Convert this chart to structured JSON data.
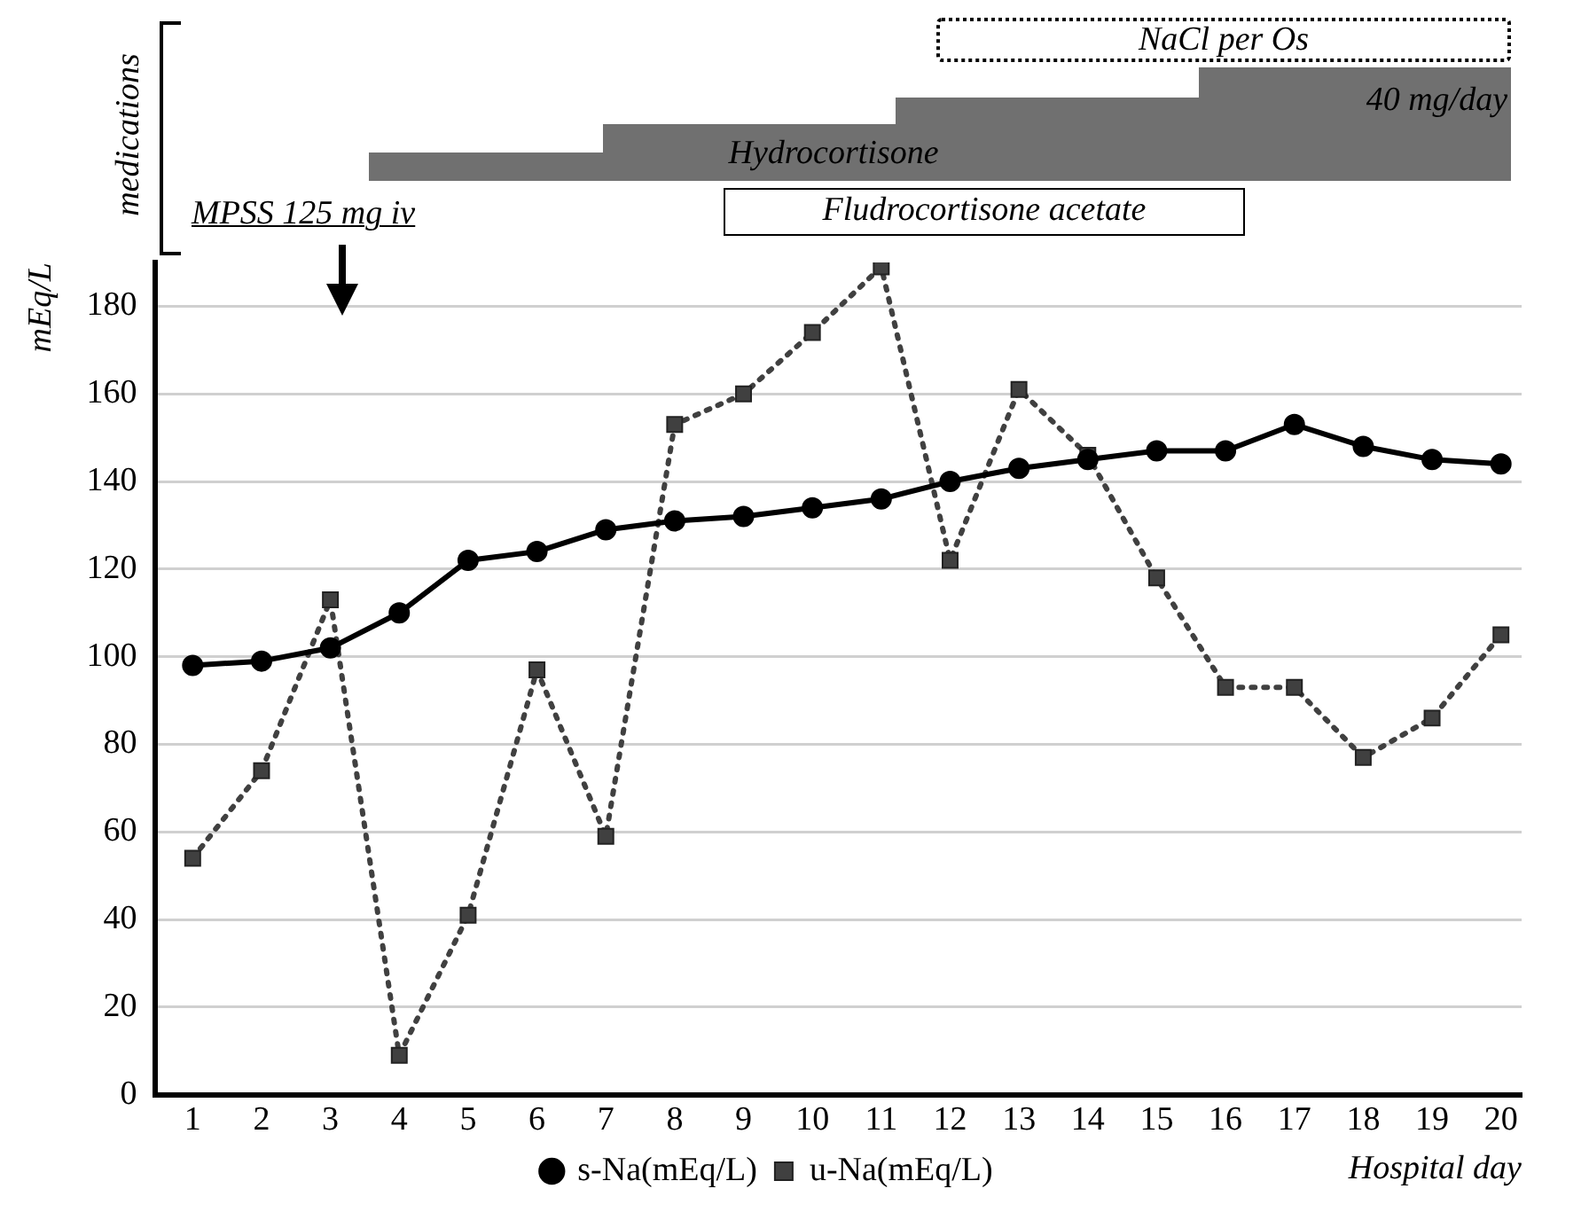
{
  "chart_data": {
    "type": "line",
    "x": [
      1,
      2,
      3,
      4,
      5,
      6,
      7,
      8,
      9,
      10,
      11,
      12,
      13,
      14,
      15,
      16,
      17,
      18,
      19,
      20
    ],
    "xlim": [
      0.45,
      20.3
    ],
    "xticks": [
      1,
      2,
      3,
      4,
      5,
      6,
      7,
      8,
      9,
      10,
      11,
      12,
      13,
      14,
      15,
      16,
      17,
      18,
      19,
      20
    ],
    "ylim": [
      0,
      190
    ],
    "yticks": [
      0,
      20,
      40,
      60,
      80,
      100,
      120,
      140,
      160,
      180
    ],
    "xlabel": "Hospital day",
    "ylabel": "mEq/L",
    "series": [
      {
        "name": "u-Na(mEq/L)",
        "color": "#404040",
        "marker": "square",
        "line_style": "dotted",
        "values": [
          54,
          74,
          113,
          9,
          41,
          97,
          59,
          153,
          160,
          174,
          189,
          122,
          161,
          146,
          118,
          93,
          93,
          77,
          86,
          105
        ]
      },
      {
        "name": "s-Na(mEq/L)",
        "color": "#000000",
        "marker": "circle",
        "line_style": "solid",
        "values": [
          98,
          99,
          102,
          110,
          122,
          124,
          129,
          131,
          132,
          134,
          136,
          140,
          143,
          145,
          147,
          147,
          153,
          148,
          145,
          144
        ]
      }
    ],
    "annotations": [
      "medications",
      "MPSS 125 mg iv",
      "Hydrocortisone",
      "40 mg/day",
      "Fludrocortisone acetate",
      "NaCl per Os"
    ],
    "grid": "y",
    "legend": "bottom"
  }
}
